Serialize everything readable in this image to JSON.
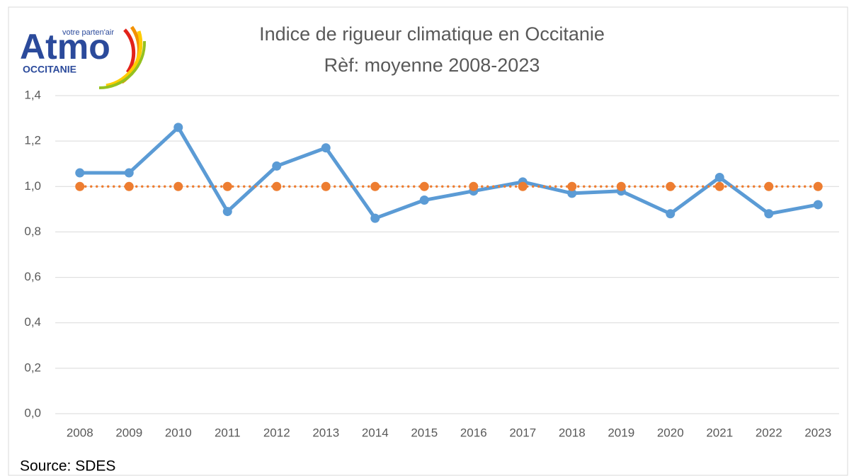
{
  "logo": {
    "name": "Atmo",
    "tagline": "votre parten'air",
    "region": "OCCITANIE"
  },
  "chart_data": {
    "type": "line",
    "title": "Indice de rigueur climatique en Occitanie",
    "subtitle": "Rèf: moyenne 2008-2023",
    "source": "Source: SDES",
    "categories": [
      "2008",
      "2009",
      "2010",
      "2011",
      "2012",
      "2013",
      "2014",
      "2015",
      "2016",
      "2017",
      "2018",
      "2019",
      "2020",
      "2021",
      "2022",
      "2023"
    ],
    "series": [
      {
        "color": "#5b9bd5",
        "style": "solid",
        "values": [
          1.06,
          1.06,
          1.26,
          0.89,
          1.09,
          1.17,
          0.86,
          0.94,
          0.98,
          1.02,
          0.97,
          0.98,
          0.88,
          1.04,
          0.88,
          0.92
        ]
      },
      {
        "color": "#ed7d31",
        "style": "dotted",
        "values": [
          1,
          1,
          1,
          1,
          1,
          1,
          1,
          1,
          1,
          1,
          1,
          1,
          1,
          1,
          1,
          1
        ]
      }
    ],
    "ylim": [
      0,
      1.4
    ],
    "yticks": [
      {
        "value": 0,
        "label": "0,0"
      },
      {
        "value": 0.2,
        "label": "0,2"
      },
      {
        "value": 0.4,
        "label": "0,4"
      },
      {
        "value": 0.6,
        "label": "0,6"
      },
      {
        "value": 0.8,
        "label": "0,8"
      },
      {
        "value": 1,
        "label": "1,0"
      },
      {
        "value": 1.2,
        "label": "1,2"
      },
      {
        "value": 1.4,
        "label": "1,4"
      }
    ],
    "grid": true
  }
}
